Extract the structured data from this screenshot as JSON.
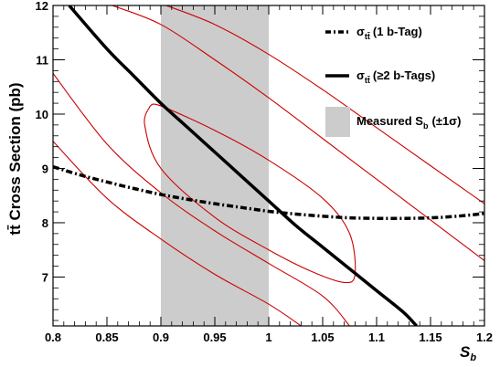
{
  "chart_data": {
    "type": "line",
    "xlabel": "S",
    "xlabel_sub": "b",
    "ylabel": "tt̄ Cross Section (pb)",
    "xlim": [
      0.8,
      1.2
    ],
    "ylim": [
      6.1,
      12.0
    ],
    "x_ticks": [
      "0.8",
      "0.85",
      "0.9",
      "0.95",
      "1",
      "1.05",
      "1.1",
      "1.15",
      "1.2"
    ],
    "x_tick_values": [
      0.8,
      0.85,
      0.9,
      0.95,
      1.0,
      1.05,
      1.1,
      1.15,
      1.2
    ],
    "y_ticks": [
      "7",
      "8",
      "9",
      "10",
      "11",
      "12"
    ],
    "y_tick_values": [
      7,
      8,
      9,
      10,
      11,
      12
    ],
    "band": {
      "x_min": 0.9,
      "x_max": 1.0,
      "color": "#cccccc"
    },
    "series": [
      {
        "name": "σ (1 b-Tag)",
        "name_main": "σ",
        "name_sub": "tt̄",
        "name_rest": "(1 b-Tag)",
        "style": "dashdot",
        "color": "#000000",
        "x": [
          0.8,
          0.825,
          0.85,
          0.875,
          0.9,
          0.925,
          0.95,
          0.975,
          1.0,
          1.025,
          1.05,
          1.075,
          1.1,
          1.125,
          1.15,
          1.175,
          1.2
        ],
        "y": [
          9.03,
          8.88,
          8.75,
          8.63,
          8.52,
          8.43,
          8.35,
          8.28,
          8.21,
          8.16,
          8.12,
          8.09,
          8.08,
          8.08,
          8.09,
          8.12,
          8.17
        ]
      },
      {
        "name": "σ (≥2 b-Tags)",
        "name_main": "σ",
        "name_sub": "tt̄",
        "name_rest": "(≥2 b-Tags)",
        "style": "solid",
        "color": "#000000",
        "x": [
          0.815,
          0.85,
          0.875,
          0.9,
          0.925,
          0.95,
          0.975,
          1.0,
          1.025,
          1.05,
          1.075,
          1.1,
          1.125,
          1.137
        ],
        "y": [
          12.0,
          11.2,
          10.7,
          10.2,
          9.75,
          9.3,
          8.85,
          8.4,
          7.95,
          7.55,
          7.15,
          6.75,
          6.35,
          6.1
        ]
      }
    ],
    "contours": [
      {
        "name": "inner",
        "color": "#cc0000",
        "x": [
          0.89,
          0.9,
          0.95,
          1.0,
          1.05,
          1.075,
          1.08,
          1.07,
          1.04,
          1.0,
          0.95,
          0.9,
          0.885,
          0.89
        ],
        "y": [
          10.15,
          10.15,
          9.7,
          9.15,
          8.45,
          7.8,
          7.05,
          6.9,
          7.1,
          7.5,
          8.1,
          9.0,
          9.8,
          10.15
        ]
      },
      {
        "name": "middle-upper",
        "color": "#cc0000",
        "x": [
          0.855,
          0.9,
          0.95,
          1.0,
          1.05,
          1.1,
          1.15,
          1.2
        ],
        "y": [
          12.0,
          11.65,
          11.0,
          10.3,
          9.55,
          8.8,
          8.05,
          7.3
        ]
      },
      {
        "name": "middle-lower",
        "color": "#cc0000",
        "x": [
          0.8,
          0.85,
          0.9,
          0.95,
          1.0,
          1.05,
          1.075
        ],
        "y": [
          10.75,
          9.45,
          8.55,
          7.85,
          7.25,
          6.65,
          6.1
        ]
      },
      {
        "name": "outer-upper",
        "color": "#cc0000",
        "x": [
          0.905,
          0.95,
          1.0,
          1.05,
          1.1,
          1.15,
          1.2
        ],
        "y": [
          12.0,
          11.65,
          11.1,
          10.45,
          9.75,
          9.05,
          8.35
        ]
      },
      {
        "name": "outer-lower",
        "color": "#cc0000",
        "x": [
          0.8,
          0.85,
          0.9,
          0.95,
          1.0,
          1.03
        ],
        "y": [
          9.5,
          8.45,
          7.7,
          7.05,
          6.5,
          6.1
        ]
      }
    ],
    "legend": {
      "placement": "top-right",
      "band_label_main": "Measured S",
      "band_label_sub": "b",
      "band_label_rest": "(±1σ)"
    },
    "grid": false
  }
}
